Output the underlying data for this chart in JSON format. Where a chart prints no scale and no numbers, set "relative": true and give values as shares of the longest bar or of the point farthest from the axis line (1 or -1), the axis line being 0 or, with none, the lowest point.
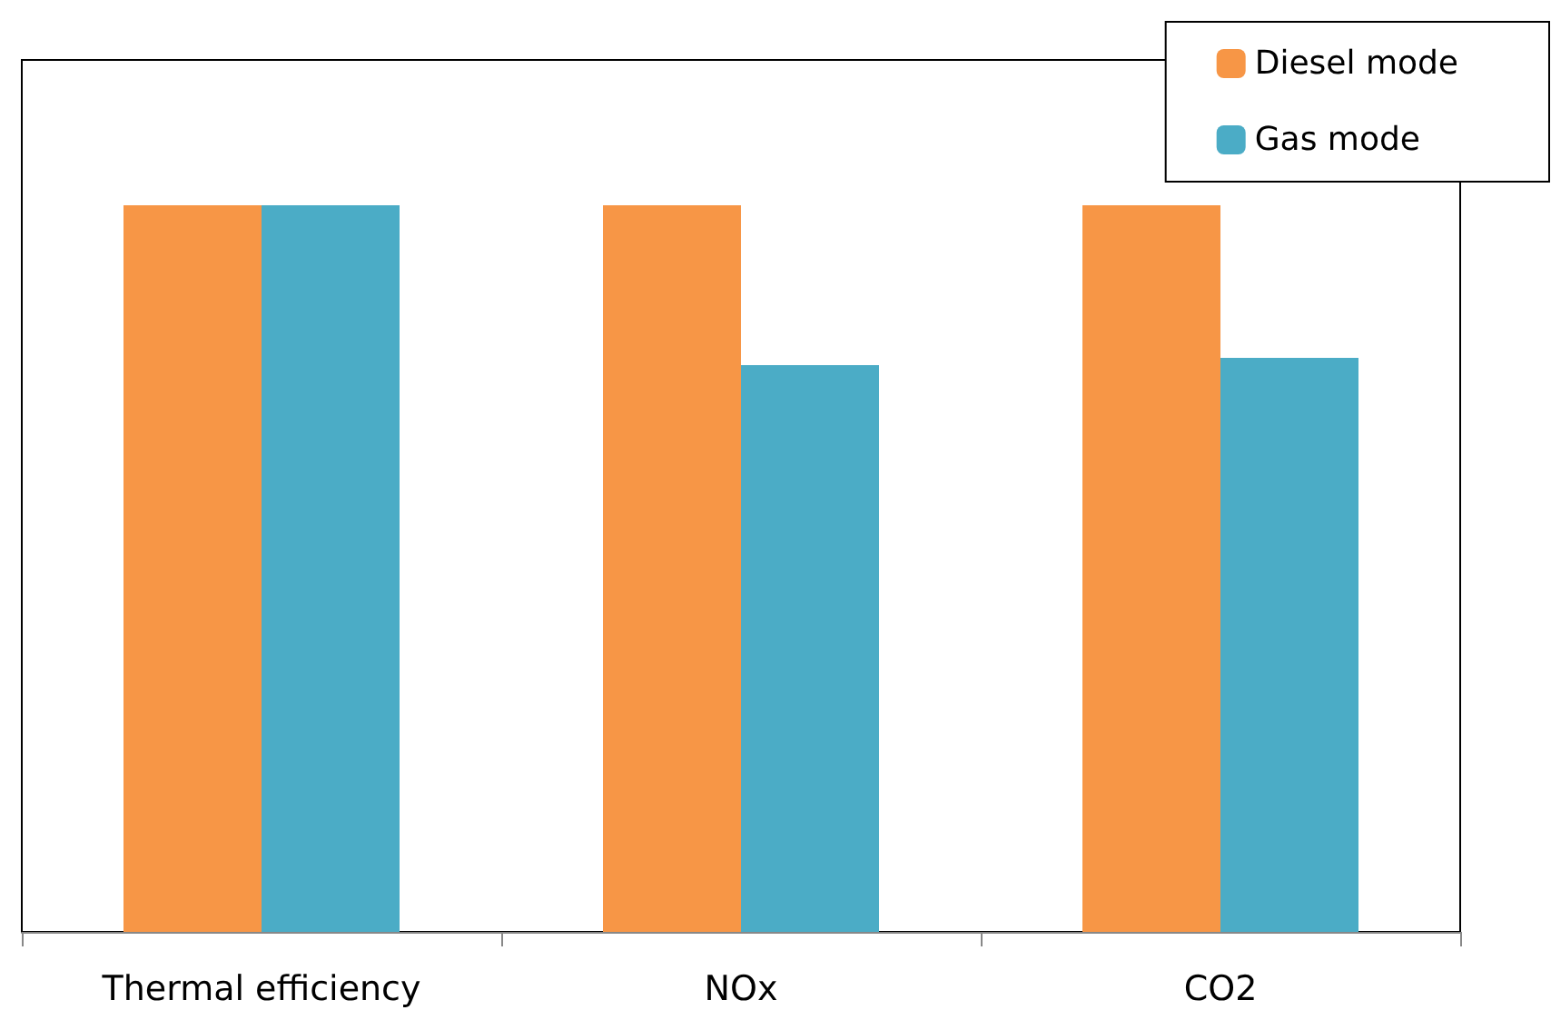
{
  "chart_data": {
    "type": "bar",
    "relative": true,
    "categories": [
      "Thermal efficiency",
      "NOx",
      "CO2"
    ],
    "series": [
      {
        "name": "Diesel mode",
        "color": "#f79646",
        "values": [
          1,
          1,
          1
        ]
      },
      {
        "name": "Gas mode",
        "color": "#4bacc6",
        "values": [
          1,
          0.78,
          0.79
        ]
      }
    ],
    "legend": "top right"
  }
}
